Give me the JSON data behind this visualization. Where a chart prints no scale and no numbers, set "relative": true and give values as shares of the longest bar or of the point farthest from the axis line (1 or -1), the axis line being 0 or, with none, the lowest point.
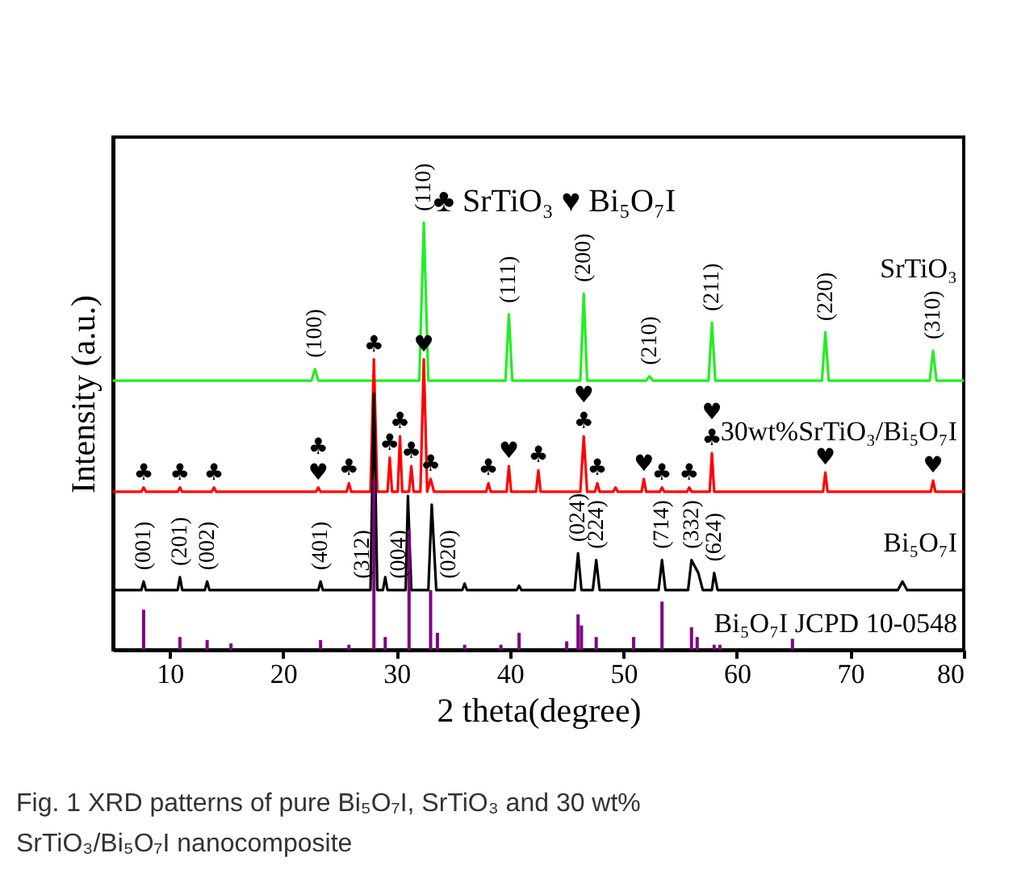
{
  "chart_data": {
    "type": "line",
    "relative": true,
    "xlabel": "2 theta(degree)",
    "ylabel": "Intensity (a.u.)",
    "xlim": [
      5,
      80
    ],
    "xticks": [
      10,
      20,
      30,
      40,
      50,
      60,
      70,
      80
    ],
    "grid": false,
    "series": [
      {
        "name": "SrTiO₃",
        "color": "#22ee22",
        "x": [
          5,
          22.5,
          22.8,
          23.1,
          32.0,
          32.4,
          32.8,
          39.6,
          39.9,
          40.2,
          46.2,
          46.5,
          46.8,
          52.0,
          52.3,
          52.6,
          57.5,
          57.8,
          58.1,
          67.5,
          67.8,
          68.1,
          77.0,
          77.3,
          77.6,
          80
        ],
        "values": [
          0.63,
          0.63,
          0.657,
          0.63,
          0.63,
          1.0,
          0.63,
          0.63,
          0.785,
          0.63,
          0.63,
          0.834,
          0.63,
          0.63,
          0.64,
          0.63,
          0.63,
          0.766,
          0.63,
          0.63,
          0.743,
          0.63,
          0.63,
          0.7,
          0.63,
          0.63
        ]
      },
      {
        "name": "30wt%SrTiO₃/Bi₅O₇I",
        "color": "#ff0000",
        "x": [
          5,
          7.5,
          7.7,
          7.9,
          10.7,
          10.9,
          11.1,
          13.7,
          13.9,
          14.1,
          22.9,
          23.1,
          23.3,
          25.6,
          25.8,
          26.0,
          27.7,
          28.0,
          28.3,
          29.2,
          29.4,
          29.6,
          30.1,
          30.3,
          30.5,
          31.1,
          31.3,
          31.5,
          32.1,
          32.4,
          32.7,
          33.0,
          33.3,
          37.9,
          38.1,
          38.3,
          39.7,
          39.9,
          40.1,
          42.3,
          42.5,
          42.7,
          46.2,
          46.5,
          46.8,
          47.5,
          47.7,
          47.9,
          49.1,
          49.3,
          49.5,
          51.6,
          51.8,
          52.0,
          53.2,
          53.4,
          53.6,
          55.6,
          55.8,
          56.0,
          57.6,
          57.8,
          58.0,
          67.6,
          67.8,
          68.0,
          77.1,
          77.3,
          77.5,
          80
        ],
        "values": [
          0.37,
          0.37,
          0.38,
          0.37,
          0.37,
          0.38,
          0.37,
          0.37,
          0.38,
          0.37,
          0.37,
          0.38,
          0.37,
          0.37,
          0.39,
          0.37,
          0.37,
          0.68,
          0.37,
          0.37,
          0.45,
          0.37,
          0.37,
          0.5,
          0.37,
          0.37,
          0.43,
          0.37,
          0.37,
          0.68,
          0.37,
          0.4,
          0.37,
          0.37,
          0.39,
          0.37,
          0.37,
          0.43,
          0.37,
          0.37,
          0.42,
          0.37,
          0.37,
          0.5,
          0.37,
          0.37,
          0.39,
          0.37,
          0.37,
          0.38,
          0.37,
          0.37,
          0.4,
          0.37,
          0.37,
          0.38,
          0.37,
          0.37,
          0.38,
          0.37,
          0.37,
          0.46,
          0.37,
          0.37,
          0.415,
          0.37,
          0.37,
          0.396,
          0.37,
          0.37
        ]
      },
      {
        "name": "Bi₅O₇I",
        "color": "#000000",
        "x": [
          5,
          7.5,
          7.7,
          7.9,
          10.7,
          10.9,
          11.1,
          13.1,
          13.3,
          13.5,
          23.1,
          23.3,
          23.5,
          27.7,
          28.0,
          28.3,
          28.8,
          29.0,
          29.2,
          30.8,
          31.0,
          31.3,
          32.8,
          33.1,
          33.5,
          35.8,
          36.0,
          36.2,
          40.6,
          40.8,
          41.0,
          45.7,
          46.0,
          46.3,
          47.3,
          47.6,
          47.9,
          53.1,
          53.4,
          53.7,
          55.7,
          56.0,
          56.6,
          57.0,
          57.8,
          58.0,
          58.3,
          74.2,
          74.6,
          75.0,
          80
        ],
        "values": [
          0.14,
          0.14,
          0.16,
          0.14,
          0.14,
          0.17,
          0.14,
          0.14,
          0.16,
          0.14,
          0.14,
          0.16,
          0.14,
          0.14,
          0.6,
          0.14,
          0.14,
          0.17,
          0.14,
          0.14,
          0.36,
          0.14,
          0.14,
          0.34,
          0.14,
          0.14,
          0.155,
          0.14,
          0.14,
          0.15,
          0.14,
          0.14,
          0.226,
          0.14,
          0.14,
          0.21,
          0.14,
          0.14,
          0.21,
          0.14,
          0.14,
          0.21,
          0.18,
          0.14,
          0.14,
          0.18,
          0.14,
          0.14,
          0.16,
          0.14,
          0.14
        ]
      },
      {
        "name": "Bi₅O₇I JCPD 10-0548",
        "color": "#800080",
        "type": "bar",
        "x": [
          7.7,
          10.9,
          13.3,
          15.4,
          23.3,
          25.8,
          28.0,
          29.0,
          31.1,
          33.0,
          33.6,
          36.0,
          39.2,
          40.8,
          45.0,
          46.0,
          46.3,
          47.6,
          50.9,
          53.4,
          56.0,
          56.5,
          58.0,
          58.5,
          64.9
        ],
        "values": [
          0.094,
          0.03,
          0.023,
          0.015,
          0.023,
          0.012,
          0.4,
          0.03,
          0.28,
          0.14,
          0.04,
          0.012,
          0.012,
          0.04,
          0.02,
          0.083,
          0.057,
          0.03,
          0.03,
          0.113,
          0.053,
          0.03,
          0.012,
          0.012,
          0.026
        ]
      }
    ],
    "annotations": [
      "♣ SrTiO₃   ♥ Bi₅O₇I",
      "Fig. 1 XRD patterns of pure Bi₅O₇I, SrTiO₃ and 30 wt%",
      "SrTiO₃/Bi₅O₇I nanocomposite",
      {
        "text": "(100)",
        "x": 22.8,
        "y": 0.657
      },
      {
        "text": "(110)",
        "x": 32.4,
        "y": 1.0
      },
      {
        "text": "(111)",
        "x": 39.9,
        "y": 0.785
      },
      {
        "text": "(200)",
        "x": 46.5,
        "y": 0.834
      },
      {
        "text": "(210)",
        "x": 52.3,
        "y": 0.64
      },
      {
        "text": "(211)",
        "x": 57.8,
        "y": 0.766
      },
      {
        "text": "(220)",
        "x": 67.8,
        "y": 0.743
      },
      {
        "text": "(310)",
        "x": 77.3,
        "y": 0.7
      },
      {
        "text": "(001)",
        "x": 7.7,
        "y": 0.16
      },
      {
        "text": "(201)",
        "x": 10.9,
        "y": 0.17
      },
      {
        "text": "(002)",
        "x": 13.3,
        "y": 0.16
      },
      {
        "text": "(401)",
        "x": 23.3,
        "y": 0.16
      },
      {
        "text": "(312)",
        "x": 27.0,
        "y": 0.14
      },
      {
        "text": "(004)",
        "x": 30.2,
        "y": 0.14
      },
      {
        "text": "(020)",
        "x": 34.6,
        "y": 0.14
      },
      {
        "text": "(024)",
        "x": 46.0,
        "y": 0.226
      },
      {
        "text": "(224)",
        "x": 47.6,
        "y": 0.21
      },
      {
        "text": "(714)",
        "x": 53.4,
        "y": 0.21
      },
      {
        "text": "(332)",
        "x": 56.0,
        "y": 0.21
      },
      {
        "text": "(624)",
        "x": 58.0,
        "y": 0.18
      },
      {
        "text": "♣",
        "x": 7.7,
        "y": 0.38
      },
      {
        "text": "♣",
        "x": 10.9,
        "y": 0.38
      },
      {
        "text": "♣",
        "x": 13.9,
        "y": 0.38
      },
      {
        "text": "♥",
        "x": 23.1,
        "y": 0.38
      },
      {
        "text": "♣",
        "x": 23.1,
        "y": 0.38
      },
      {
        "text": "♣",
        "x": 25.8,
        "y": 0.39
      },
      {
        "text": "♣",
        "x": 28.0,
        "y": 0.68
      },
      {
        "text": "♣",
        "x": 29.4,
        "y": 0.45
      },
      {
        "text": "♣",
        "x": 30.3,
        "y": 0.5
      },
      {
        "text": "♣",
        "x": 31.3,
        "y": 0.43
      },
      {
        "text": "♥",
        "x": 32.4,
        "y": 0.68
      },
      {
        "text": "♣",
        "x": 33.0,
        "y": 0.4
      },
      {
        "text": "♣",
        "x": 38.1,
        "y": 0.39
      },
      {
        "text": "♥",
        "x": 39.9,
        "y": 0.43
      },
      {
        "text": "♣",
        "x": 42.5,
        "y": 0.42
      },
      {
        "text": "♣",
        "x": 46.5,
        "y": 0.5
      },
      {
        "text": "♥",
        "x": 46.5,
        "y": 0.5
      },
      {
        "text": "♣",
        "x": 47.7,
        "y": 0.39
      },
      {
        "text": "♥",
        "x": 51.8,
        "y": 0.4
      },
      {
        "text": "♣",
        "x": 53.4,
        "y": 0.38
      },
      {
        "text": "♣",
        "x": 55.8,
        "y": 0.38
      },
      {
        "text": "♣",
        "x": 57.8,
        "y": 0.46
      },
      {
        "text": "♥",
        "x": 57.8,
        "y": 0.46
      },
      {
        "text": "♥",
        "x": 67.8,
        "y": 0.415
      },
      {
        "text": "♥",
        "x": 77.3,
        "y": 0.396
      }
    ]
  }
}
